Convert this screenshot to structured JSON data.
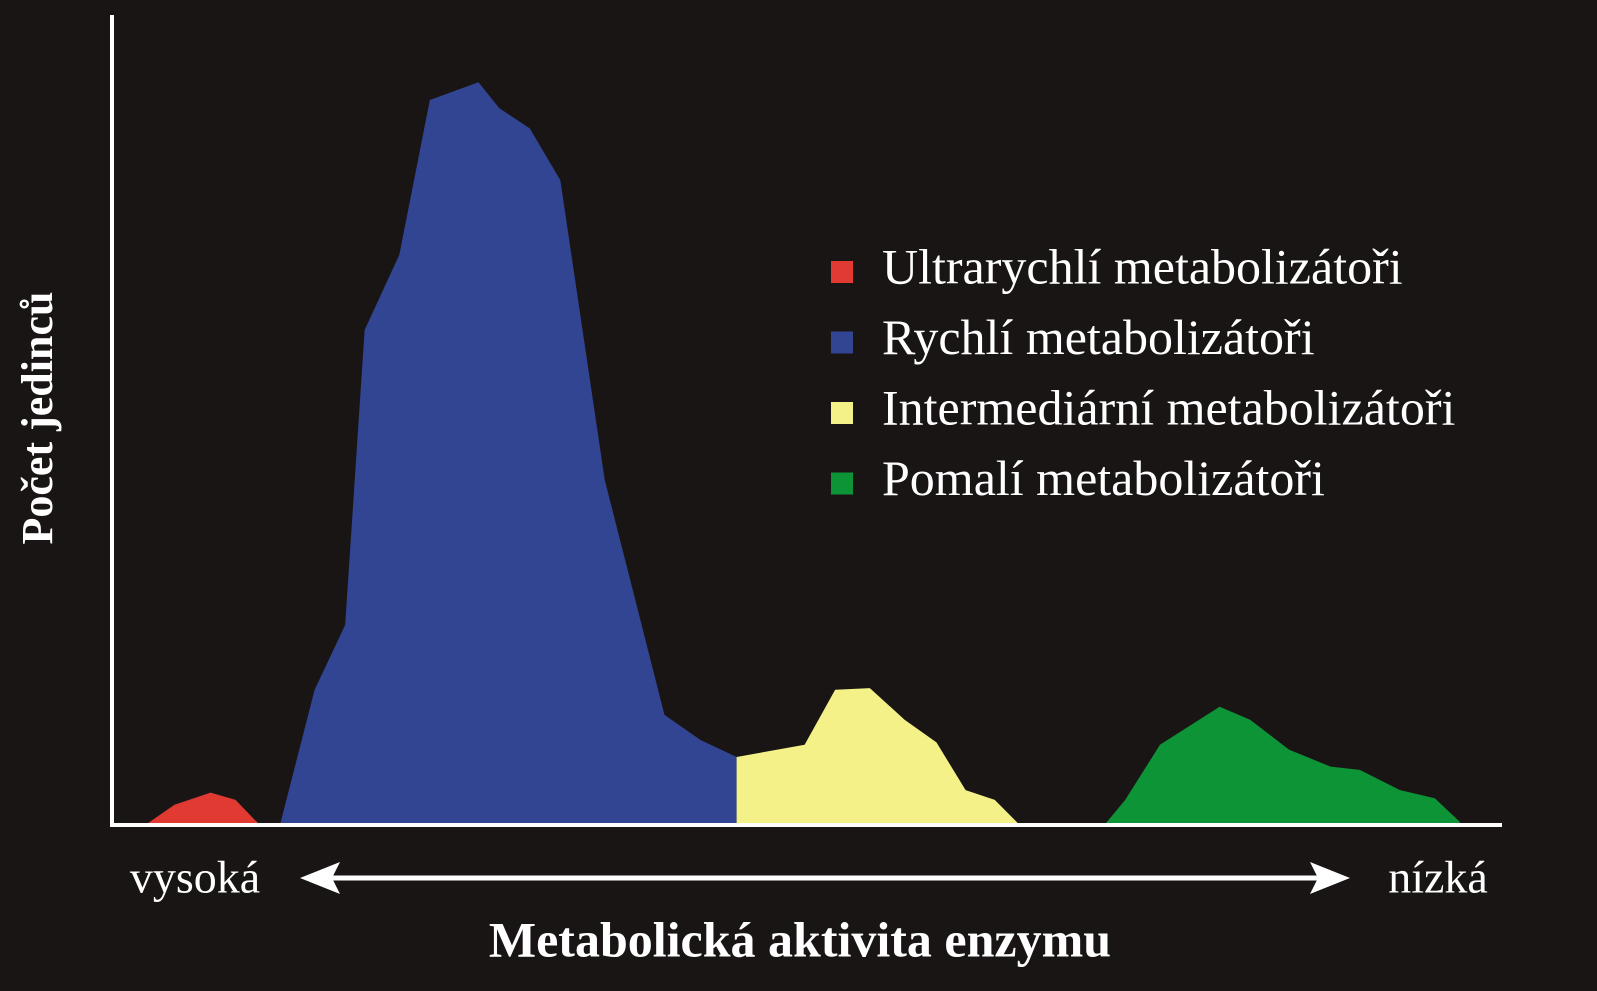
{
  "chart_data": {
    "type": "area",
    "xlabel": "Metabolická aktivita enzymu",
    "ylabel": "Počet jedinců",
    "axis_end_labels": [
      "vysoká",
      "nízká"
    ],
    "xlim": [
      0,
      100
    ],
    "ylim": [
      0,
      100
    ],
    "series": [
      {
        "name": "Ultrarychlí metabolizátoři",
        "color": "#e03a33",
        "x": [
          2.4,
          4.5,
          7.1,
          8.9,
          10.3,
          10.7
        ],
        "values": [
          0,
          2.5,
          4.0,
          3.1,
          0.6,
          0
        ]
      },
      {
        "name": "Rychlí metabolizátoři",
        "color": "#324593",
        "x": [
          12.1,
          14.6,
          16.8,
          18.2,
          20.7,
          22.9,
          26.4,
          27.9,
          30.1,
          32.3,
          35.5,
          37.7,
          39.8,
          42.4,
          45.0,
          45.0
        ],
        "values": [
          0,
          16.7,
          24.7,
          61.1,
          70.4,
          89.5,
          91.7,
          88.5,
          86.0,
          79.6,
          42.6,
          27.8,
          13.6,
          10.5,
          8.4,
          0
        ]
      },
      {
        "name": "Intermediární metabolizátoři",
        "color": "#f4f189",
        "x": [
          45.0,
          49.9,
          52.1,
          54.6,
          57.1,
          59.4,
          61.5,
          63.6,
          65.4
        ],
        "values": [
          8.4,
          9.9,
          16.7,
          16.9,
          13.0,
          10.2,
          4.3,
          3.1,
          0
        ]
      },
      {
        "name": "Pomalí metabolizátoři",
        "color": "#0d9437",
        "x": [
          71.5,
          73.0,
          75.5,
          79.8,
          82.0,
          84.8,
          87.8,
          89.9,
          92.8,
          95.3,
          97.1
        ],
        "values": [
          0,
          3.1,
          9.9,
          14.6,
          13.0,
          9.3,
          7.2,
          6.8,
          4.3,
          3.3,
          0.4
        ]
      }
    ]
  }
}
